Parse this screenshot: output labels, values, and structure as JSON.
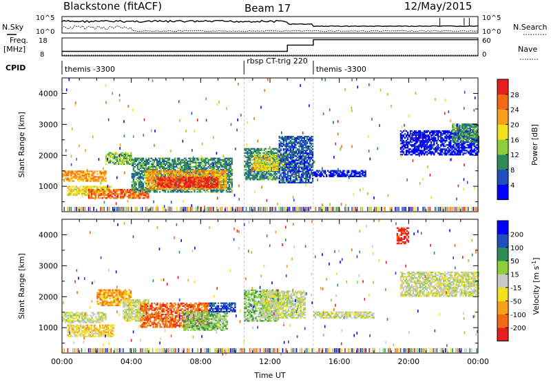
{
  "header": {
    "title": "Blackstone (fitACF)",
    "beam": "Beam 17",
    "date": "12/May/2015"
  },
  "strip": {
    "nsky_label": "N.Sky",
    "nsearch_label": "N.Search",
    "freq_label_1": "Freq.",
    "freq_label_2": "[MHz]",
    "nave_label": "Nave",
    "cpid_label": "CPID",
    "nsky_ticks": [
      "10^5",
      "10^0"
    ],
    "nsearch_ticks": [
      "10^5",
      "10^0"
    ],
    "freq_ticks": [
      "18",
      "8"
    ],
    "nave_ticks": [
      "60",
      "0"
    ],
    "cpid_segments": [
      {
        "start_hr": 0,
        "label": "themis -3300"
      },
      {
        "start_hr": 10.5,
        "label": "rbsp CT-trig 220"
      },
      {
        "start_hr": 14.5,
        "label": "themis -3300"
      }
    ],
    "freq_steps": [
      {
        "start_hr": 0,
        "end_hr": 13,
        "freq_mhz": 10.5
      },
      {
        "start_hr": 13,
        "end_hr": 14.5,
        "freq_mhz": 14
      },
      {
        "start_hr": 14.5,
        "end_hr": 24,
        "freq_mhz": 17
      }
    ]
  },
  "chart_data": [
    {
      "type": "heatmap",
      "panel": "power",
      "ylabel": "Slant Range [km]",
      "xlabel": "",
      "colorbar_label": "Power [dB]",
      "colorbar_ticks": [
        "28",
        "24",
        "20",
        "16",
        "12",
        "8",
        "4"
      ],
      "colors": [
        "#0000ff",
        "#1f4fbf",
        "#2e8b57",
        "#8ccf3a",
        "#f2e21b",
        "#f7a11a",
        "#f26a13",
        "#e61e1e"
      ],
      "xlim_hr": [
        0,
        24
      ],
      "ylim_km": [
        180,
        4500
      ],
      "yticks": [
        "4000",
        "3000",
        "2000",
        "1000"
      ],
      "xticks": [
        "00:00",
        "04:00",
        "08:00",
        "12:00",
        "16:00",
        "20:00",
        "00:00"
      ],
      "regions": [
        {
          "t0": 0.0,
          "t1": 2.5,
          "r0": 1150,
          "r1": 1500,
          "level": 5
        },
        {
          "t0": 0.3,
          "t1": 2.8,
          "r0": 700,
          "r1": 1000,
          "level": 4
        },
        {
          "t0": 1.5,
          "t1": 5.0,
          "r0": 600,
          "r1": 900,
          "level": 6
        },
        {
          "t0": 2.5,
          "t1": 4.0,
          "r0": 1700,
          "r1": 2100,
          "level": 3
        },
        {
          "t0": 4.0,
          "t1": 9.8,
          "r0": 800,
          "r1": 1900,
          "level": 2
        },
        {
          "t0": 4.8,
          "t1": 9.5,
          "r0": 900,
          "r1": 1500,
          "level": 5
        },
        {
          "t0": 5.5,
          "t1": 9.0,
          "r0": 950,
          "r1": 1300,
          "level": 7
        },
        {
          "t0": 10.5,
          "t1": 12.5,
          "r0": 1200,
          "r1": 2200,
          "level": 2
        },
        {
          "t0": 11.0,
          "t1": 13.0,
          "r0": 1500,
          "r1": 2000,
          "level": 4
        },
        {
          "t0": 12.5,
          "t1": 14.5,
          "r0": 1100,
          "r1": 2600,
          "level": 1
        },
        {
          "t0": 14.5,
          "t1": 17.5,
          "r0": 1300,
          "r1": 1500,
          "level": 0
        },
        {
          "t0": 19.5,
          "t1": 24.0,
          "r0": 2000,
          "r1": 2800,
          "level": 0
        },
        {
          "t0": 22.5,
          "t1": 24.0,
          "r0": 2400,
          "r1": 3000,
          "level": 2
        }
      ]
    },
    {
      "type": "heatmap",
      "panel": "velocity",
      "ylabel": "Slant Range [km]",
      "xlabel": "Time UT",
      "colorbar_label": "Velocity [m s^-1]",
      "colorbar_ticks": [
        "200",
        "100",
        "50",
        "15",
        "-15",
        "-50",
        "-100",
        "-200"
      ],
      "colors": [
        "#e61e1e",
        "#f26a13",
        "#f7a11a",
        "#f2e21b",
        "#c8c8c8",
        "#8ccf3a",
        "#2e8b57",
        "#1f4fbf",
        "#0000ff"
      ],
      "xlim_hr": [
        0,
        24
      ],
      "ylim_km": [
        180,
        4500
      ],
      "yticks": [
        "4000",
        "3000",
        "2000",
        "1000"
      ],
      "xticks": [
        "00:00",
        "04:00",
        "08:00",
        "12:00",
        "16:00",
        "20:00",
        "00:00"
      ],
      "regions": [
        {
          "t0": 0.0,
          "t1": 2.5,
          "r0": 1150,
          "r1": 1500,
          "level": 4
        },
        {
          "t0": 0.3,
          "t1": 3.0,
          "r0": 700,
          "r1": 1100,
          "level": 3
        },
        {
          "t0": 2.0,
          "t1": 4.0,
          "r0": 1700,
          "r1": 2200,
          "level": 2
        },
        {
          "t0": 3.5,
          "t1": 5.0,
          "r0": 1200,
          "r1": 1900,
          "level": 4
        },
        {
          "t0": 4.5,
          "t1": 8.5,
          "r0": 1000,
          "r1": 1800,
          "level": 1
        },
        {
          "t0": 7.0,
          "t1": 9.5,
          "r0": 900,
          "r1": 1500,
          "level": 5
        },
        {
          "t0": 8.5,
          "t1": 10.0,
          "r0": 1500,
          "r1": 1800,
          "level": 7
        },
        {
          "t0": 10.5,
          "t1": 12.5,
          "r0": 1200,
          "r1": 2200,
          "level": 5
        },
        {
          "t0": 11.5,
          "t1": 14.0,
          "r0": 1300,
          "r1": 2200,
          "level": 4
        },
        {
          "t0": 14.5,
          "t1": 18.0,
          "r0": 1300,
          "r1": 1500,
          "level": 4
        },
        {
          "t0": 19.5,
          "t1": 24.0,
          "r0": 2000,
          "r1": 2800,
          "level": 4
        },
        {
          "t0": 19.3,
          "t1": 20.0,
          "r0": 3700,
          "r1": 4200,
          "level": 0
        }
      ]
    }
  ]
}
